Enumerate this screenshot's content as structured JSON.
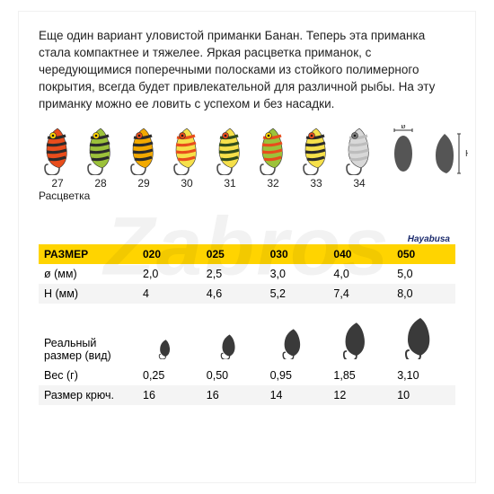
{
  "description": "Еще один вариант уловистой приманки Банан. Теперь эта приманка стала компактнее и тяжелее.  Яркая расцветка приманок, с чередующимися поперечными полосками из стойкого полимерного покрытия, всегда будет привлекательной для различной рыбы. На эту приманку можно ее ловить с успехом и без насадки.",
  "watermark": "Zabros",
  "brand": "Hayabusa",
  "lures": [
    {
      "num": "27",
      "body": "#e84d1c",
      "stripe": "#2b2b2b",
      "eye": "#ffd400"
    },
    {
      "num": "28",
      "body": "#9cc23a",
      "stripe": "#2b2b2b",
      "eye": "#ffd400"
    },
    {
      "num": "29",
      "body": "#f2a900",
      "stripe": "#2b2b2b",
      "eye": "#e84d1c"
    },
    {
      "num": "30",
      "body": "#f6e04a",
      "stripe": "#e84d1c",
      "eye": "#e84d1c"
    },
    {
      "num": "31",
      "body": "#f6e04a",
      "stripe": "#314d1c",
      "eye": "#e84d1c"
    },
    {
      "num": "32",
      "body": "#9cc23a",
      "stripe": "#e84d1c",
      "eye": "#ffd400"
    },
    {
      "num": "33",
      "body": "#f6e04a",
      "stripe": "#2b2b2b",
      "eye": "#e84d1c"
    },
    {
      "num": "34",
      "body": "#d8d8d8",
      "stripe": "#bdbdbd",
      "eye": "#808080"
    }
  ],
  "lure_label": "Расцветка",
  "dimension_labels": {
    "diameter": "ø",
    "height": "H"
  },
  "table": {
    "header_label": "РАЗМЕР",
    "header_bg": "#ffd400",
    "sizes": [
      "020",
      "025",
      "030",
      "040",
      "050"
    ],
    "rows_top": [
      {
        "label": "ø (мм)",
        "vals": [
          "2,0",
          "2,5",
          "3,0",
          "4,0",
          "5,0"
        ]
      },
      {
        "label": "H (мм)",
        "vals": [
          "4",
          "4,6",
          "5,2",
          "7,4",
          "8,0"
        ]
      }
    ],
    "real_size_label": "Реальный\nразмер (вид)",
    "silhouettes_scale": [
      0.45,
      0.58,
      0.72,
      0.88,
      1.0
    ],
    "silhouette_color": "#3a3a3a",
    "rows_bot": [
      {
        "label": "Вес (г)",
        "vals": [
          "0,25",
          "0,50",
          "0,95",
          "1,85",
          "3,10"
        ]
      },
      {
        "label": "Размер крюч.",
        "vals": [
          "16",
          "16",
          "14",
          "12",
          "10"
        ]
      }
    ]
  },
  "colors": {
    "text": "#222222",
    "hook": "#4a4a4a",
    "silhouette_outline": "#888888"
  }
}
